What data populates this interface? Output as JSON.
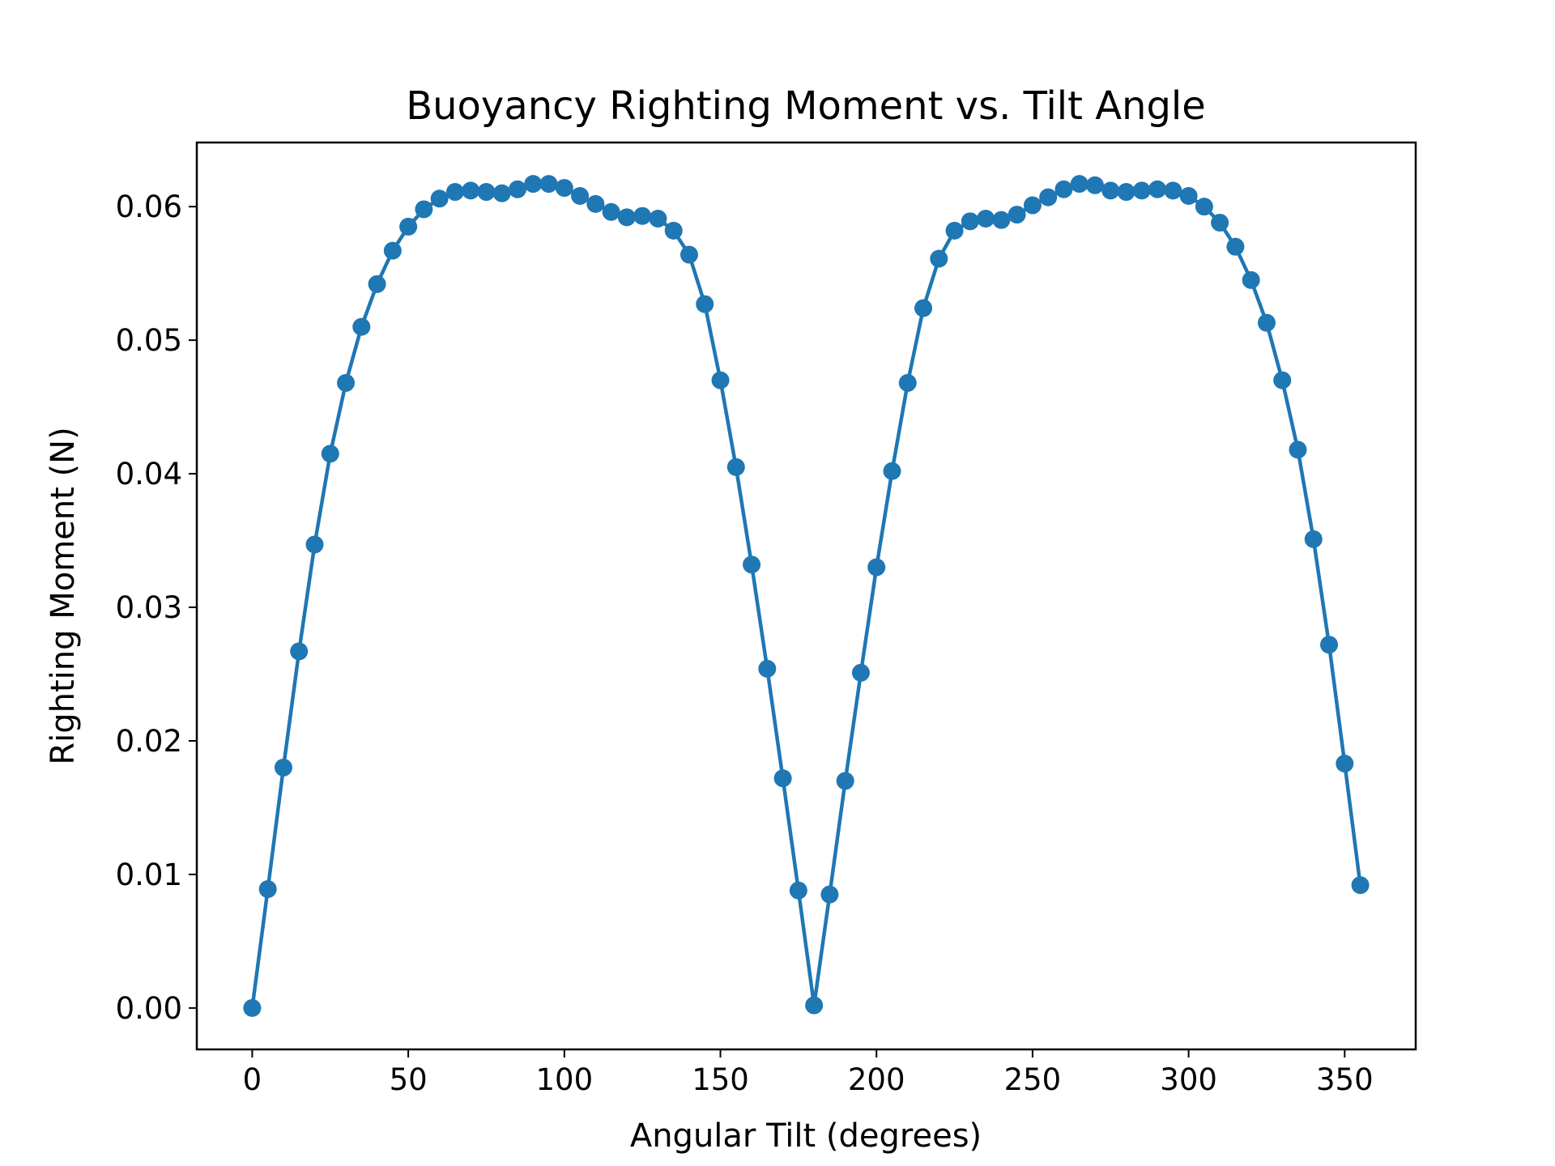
{
  "chart_data": {
    "type": "line",
    "title": "Buoyancy Righting Moment vs. Tilt Angle",
    "xlabel": "Angular Tilt (degrees)",
    "ylabel": "Righting Moment (N)",
    "xlim": [
      -17.75,
      372.75
    ],
    "ylim": [
      -0.0031,
      0.0648
    ],
    "xticks": [
      0,
      50,
      100,
      150,
      200,
      250,
      300,
      350
    ],
    "xtick_labels": [
      "0",
      "50",
      "100",
      "150",
      "200",
      "250",
      "300",
      "350"
    ],
    "yticks": [
      0,
      0.01,
      0.02,
      0.03,
      0.04,
      0.05,
      0.06
    ],
    "ytick_labels": [
      "0.00",
      "0.01",
      "0.02",
      "0.03",
      "0.04",
      "0.05",
      "0.06"
    ],
    "grid": false,
    "legend": false,
    "marker": "circle",
    "color": "#1f77b4",
    "x": [
      0,
      5,
      10,
      15,
      20,
      25,
      30,
      35,
      40,
      45,
      50,
      55,
      60,
      65,
      70,
      75,
      80,
      85,
      90,
      95,
      100,
      105,
      110,
      115,
      120,
      125,
      130,
      135,
      140,
      145,
      150,
      155,
      160,
      165,
      170,
      175,
      180,
      185,
      190,
      195,
      200,
      205,
      210,
      215,
      220,
      225,
      230,
      235,
      240,
      245,
      250,
      255,
      260,
      265,
      270,
      275,
      280,
      285,
      290,
      295,
      300,
      305,
      310,
      315,
      320,
      325,
      330,
      335,
      340,
      345,
      350,
      355
    ],
    "y": [
      0.0,
      0.0089,
      0.018,
      0.0267,
      0.0347,
      0.0415,
      0.0468,
      0.051,
      0.0542,
      0.0567,
      0.0585,
      0.0598,
      0.0606,
      0.0611,
      0.0612,
      0.0611,
      0.061,
      0.0613,
      0.0617,
      0.0617,
      0.0614,
      0.0608,
      0.0602,
      0.0596,
      0.0592,
      0.0593,
      0.0591,
      0.0582,
      0.0564,
      0.0527,
      0.047,
      0.0405,
      0.0332,
      0.0254,
      0.0172,
      0.0088,
      0.0002,
      0.0085,
      0.017,
      0.0251,
      0.033,
      0.0402,
      0.0468,
      0.0524,
      0.0561,
      0.0582,
      0.0589,
      0.0591,
      0.059,
      0.0594,
      0.0601,
      0.0607,
      0.0613,
      0.0617,
      0.0616,
      0.0612,
      0.0611,
      0.0612,
      0.0613,
      0.0612,
      0.0608,
      0.06,
      0.0588,
      0.057,
      0.0545,
      0.0513,
      0.047,
      0.0418,
      0.0351,
      0.0272,
      0.0183,
      0.0092
    ]
  }
}
